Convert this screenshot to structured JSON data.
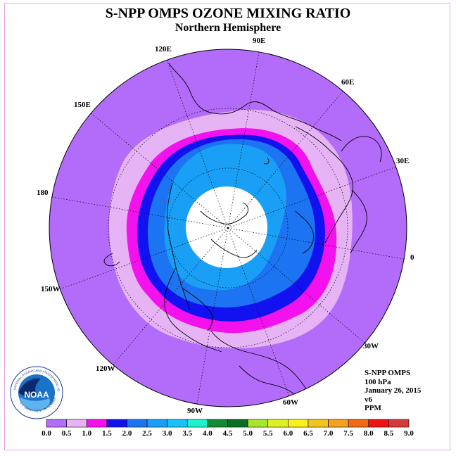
{
  "title": "S-NPP OMPS OZONE MIXING RATIO",
  "subtitle": "Northern Hemisphere",
  "longitude_labels": [
    "90E",
    "60E",
    "30E",
    "0",
    "30W",
    "60W",
    "90W",
    "120W",
    "150W",
    "180",
    "150E",
    "120E"
  ],
  "info": {
    "instrument": "S-NPP OMPS",
    "level": "100 hPa",
    "date": "January 26, 2015",
    "version": "v6",
    "units": "PPM"
  },
  "logo": {
    "text": "NOAA"
  },
  "colorbar": {
    "ticks": [
      "0.0",
      "0.5",
      "1.0",
      "1.5",
      "2.0",
      "2.5",
      "3.0",
      "3.5",
      "4.0",
      "4.5",
      "5.0",
      "5.5",
      "6.0",
      "6.5",
      "7.0",
      "7.5",
      "8.0",
      "8.5",
      "9.0"
    ],
    "colors": [
      "#b36bfa",
      "#e6b3f5",
      "#f312ed",
      "#1212f0",
      "#1d74f2",
      "#199ff5",
      "#16c2f6",
      "#1ef2ca",
      "#128a34",
      "#0b6e22",
      "#a6e62c",
      "#dcf024",
      "#f8f21a",
      "#f2c51c",
      "#f5a01e",
      "#f46a12",
      "#f01212",
      "#d33a3a"
    ]
  },
  "contour_levels": [
    {
      "min": "0.0",
      "max": "0.5",
      "color": "#b36bfa"
    },
    {
      "min": "0.5",
      "max": "1.0",
      "color": "#e6b3f5"
    },
    {
      "min": "1.0",
      "max": "1.5",
      "color": "#f312ed"
    },
    {
      "min": "1.5",
      "max": "2.0",
      "color": "#1212f0"
    },
    {
      "min": "2.0",
      "max": "2.5",
      "color": "#1d74f2"
    },
    {
      "min": "2.5",
      "max": "3.0",
      "color": "#199ff5"
    }
  ],
  "colors": {
    "frame": "#e7a6e7",
    "polar_night": "#ffffff",
    "land": "#000000"
  }
}
